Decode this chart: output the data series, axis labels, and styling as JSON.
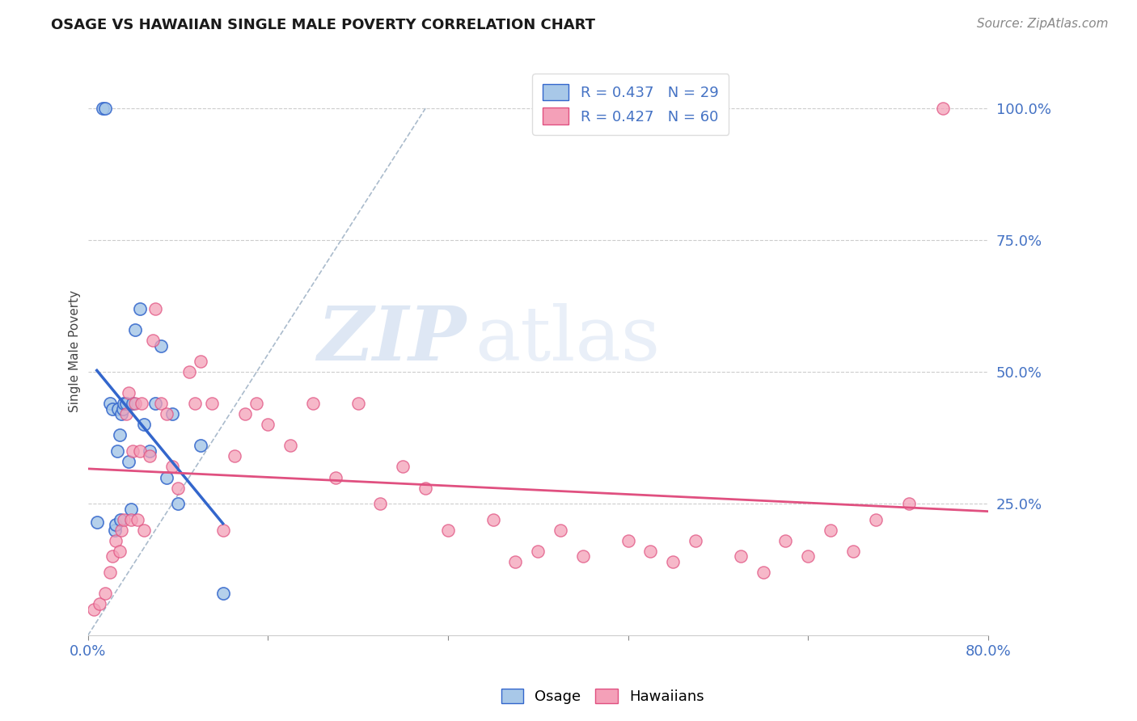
{
  "title": "OSAGE VS HAWAIIAN SINGLE MALE POVERTY CORRELATION CHART",
  "source": "Source: ZipAtlas.com",
  "ylabel": "Single Male Poverty",
  "right_yticks": [
    "100.0%",
    "75.0%",
    "50.0%",
    "25.0%"
  ],
  "right_ytick_vals": [
    1.0,
    0.75,
    0.5,
    0.25
  ],
  "osage_color": "#a8c8e8",
  "hawaiian_color": "#f4a0b8",
  "trendline_osage_color": "#3366cc",
  "trendline_hawaiian_color": "#e05080",
  "diagonal_color": "#aabbcc",
  "background_color": "#ffffff",
  "watermark_zip": "ZIP",
  "watermark_atlas": "atlas",
  "osage_x": [
    0.008,
    0.013,
    0.015,
    0.02,
    0.022,
    0.024,
    0.025,
    0.026,
    0.027,
    0.028,
    0.029,
    0.03,
    0.031,
    0.032,
    0.034,
    0.036,
    0.038,
    0.04,
    0.042,
    0.046,
    0.05,
    0.055,
    0.06,
    0.065,
    0.07,
    0.075,
    0.08,
    0.1,
    0.12
  ],
  "osage_y": [
    0.215,
    1.0,
    1.0,
    0.44,
    0.43,
    0.2,
    0.21,
    0.35,
    0.43,
    0.38,
    0.22,
    0.42,
    0.43,
    0.44,
    0.44,
    0.33,
    0.24,
    0.44,
    0.58,
    0.62,
    0.4,
    0.35,
    0.44,
    0.55,
    0.3,
    0.42,
    0.25,
    0.36,
    0.08
  ],
  "hawaiian_x": [
    0.005,
    0.01,
    0.015,
    0.02,
    0.022,
    0.025,
    0.028,
    0.03,
    0.032,
    0.034,
    0.036,
    0.038,
    0.04,
    0.042,
    0.044,
    0.046,
    0.048,
    0.05,
    0.055,
    0.058,
    0.06,
    0.065,
    0.07,
    0.075,
    0.08,
    0.09,
    0.095,
    0.1,
    0.11,
    0.12,
    0.13,
    0.14,
    0.15,
    0.16,
    0.18,
    0.2,
    0.22,
    0.24,
    0.26,
    0.28,
    0.3,
    0.32,
    0.36,
    0.38,
    0.4,
    0.42,
    0.44,
    0.48,
    0.5,
    0.52,
    0.54,
    0.58,
    0.6,
    0.62,
    0.64,
    0.66,
    0.68,
    0.7,
    0.73,
    0.76
  ],
  "hawaiian_y": [
    0.05,
    0.06,
    0.08,
    0.12,
    0.15,
    0.18,
    0.16,
    0.2,
    0.22,
    0.42,
    0.46,
    0.22,
    0.35,
    0.44,
    0.22,
    0.35,
    0.44,
    0.2,
    0.34,
    0.56,
    0.62,
    0.44,
    0.42,
    0.32,
    0.28,
    0.5,
    0.44,
    0.52,
    0.44,
    0.2,
    0.34,
    0.42,
    0.44,
    0.4,
    0.36,
    0.44,
    0.3,
    0.44,
    0.25,
    0.32,
    0.28,
    0.2,
    0.22,
    0.14,
    0.16,
    0.2,
    0.15,
    0.18,
    0.16,
    0.14,
    0.18,
    0.15,
    0.12,
    0.18,
    0.15,
    0.2,
    0.16,
    0.22,
    0.25,
    1.0
  ],
  "xlim": [
    0.0,
    0.8
  ],
  "ylim": [
    0.0,
    1.08
  ],
  "xtick_positions": [
    0.0,
    0.8
  ],
  "xtick_labels": [
    "0.0%",
    "80.0%"
  ],
  "grid_yticks": [
    0.25,
    0.5,
    0.75,
    1.0
  ],
  "figsize": [
    14.06,
    8.92
  ],
  "dpi": 100,
  "tick_color": "#4472c4",
  "title_fontsize": 13,
  "source_fontsize": 11,
  "tick_fontsize": 13,
  "ylabel_fontsize": 11,
  "legend_fontsize": 13
}
